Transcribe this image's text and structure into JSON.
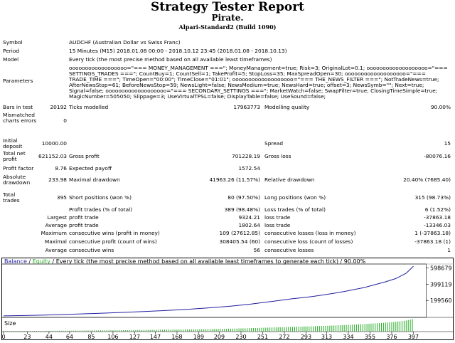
{
  "report": {
    "title": "Strategy Tester Report",
    "ea_name": "Pirate.",
    "server": "Alpari-Standard2 (Build 1090)"
  },
  "symbol": {
    "label": "Symbol",
    "value": "AUDCHF (Australian Dollar vs Swiss Franc)"
  },
  "period": {
    "label": "Period",
    "value": "15 Minutes (M15) 2018.01.08 00:00 - 2018.10.12 23:45 (2018.01.08 - 2018.10.13)"
  },
  "model": {
    "label": "Model",
    "value": "Every tick (the most precise method based on all available least timeframes)"
  },
  "parameters": {
    "label": "Parameters",
    "lines": [
      "oooooooooooooooooo=\"=== MONEY_MANAGEMENT ===\"; MoneyManagement=true; Risk=3; OriginalLot=0.1; ooooooooooooooooooo=\"===",
      "SETTINGS_TRADES ===\"; CountBuy=1; CountSell=1; TakeProfit=5; StopLoss=35; MaxSpreadOpen=30; ooooooooooooooooooo=\"===",
      "TRADE_TIME ===\"; TimeOpen=\"00:00\"; TimeClose=\"01:01\"; ooooooooooooooooooo=\"=== THE_NEWS_FILTER ===\"; NotTradeNews=true;",
      "AfterNewsStop=61; BeforeNewsStop=59; NewsLight=false; NewsMedium=true; NewsHard=true; offset=3; NewsSymb=\"\"; Next=true;",
      "Signal=false; ooooooooooooooooooo=\"=== SECONDARY_SETTINGS ===\"; MarketWatch=false; SwapFilter=true; ClosingTimeSimple=true;",
      "MagicNumber=505050; Slippage=3; UseVirtualTPSL=false; DisplayTable=false; UseSound=false;"
    ]
  },
  "stats": {
    "bars_label": "Bars in test",
    "bars_value": "20192",
    "ticks_label": "Ticks modelled",
    "ticks_value": "17963773",
    "quality_label": "Modelling quality",
    "quality_value": "90.00%",
    "mismatch_label": "Mismatched charts errors",
    "mismatch_value": "0",
    "deposit_label": "Initial deposit",
    "deposit_value": "10000.00",
    "spread_label": "Spread",
    "spread_value": "15",
    "netprofit_label": "Total net profit",
    "netprofit_value": "621152.03",
    "grossprofit_label": "Gross profit",
    "grossprofit_value": "701228.19",
    "grossloss_label": "Gross loss",
    "grossloss_value": "-80076.16",
    "pf_label": "Profit factor",
    "pf_value": "8.76",
    "payoff_label": "Expected payoff",
    "payoff_value": "1572.54",
    "absdd_label": "Absolute drawdown",
    "absdd_value": "233.98",
    "maxdd_label": "Maximal drawdown",
    "maxdd_value": "41963.26 (11.57%)",
    "reldd_label": "Relative drawdown",
    "reldd_value": "20.40% (7685.40)",
    "trades_label": "Total trades",
    "trades_value": "395",
    "short_label": "Short positions (won %)",
    "short_value": "80 (97.50%)",
    "long_label": "Long positions (won %)",
    "long_value": "315 (98.73%)",
    "profit_trades_label": "Profit trades (% of total)",
    "profit_trades_value": "389 (98.48%)",
    "loss_trades_label": "Loss trades (% of total)",
    "loss_trades_value": "6 (1.52%)",
    "largest_label": "Largest",
    "largest_profit_label": "profit trade",
    "largest_profit_value": "9324.21",
    "largest_loss_label": "loss trade",
    "largest_loss_value": "-37863.18",
    "average_label": "Average",
    "average_profit_label": "profit trade",
    "average_profit_value": "1802.64",
    "average_loss_label": "loss trade",
    "average_loss_value": "-13346.03",
    "maximum_label": "Maximum",
    "max_wins_label": "consecutive wins (profit in money)",
    "max_wins_value": "109 (27612.85)",
    "max_losses_label": "consecutive losses (loss in money)",
    "max_losses_value": "1 (-37863.18)",
    "maximal_label": "Maximal",
    "maximal_profit_label": "consecutive profit (count of wins)",
    "maximal_profit_value": "308405.54 (60)",
    "maximal_loss_label": "consecutive loss (count of losses)",
    "maximal_loss_value": "-37863.18 (1)",
    "avg_label": "Average",
    "avg_wins_label": "consecutive wins",
    "avg_wins_value": "56",
    "avg_losses_label": "consecutive losses",
    "avg_losses_value": "1"
  },
  "chart_data": {
    "type": "line",
    "legend": {
      "balance": "Balance",
      "sep": " / ",
      "equity": "Equity",
      "rest": " / Every tick (the most precise method based on all available least timeframes to generate each tick) / 90.00%"
    },
    "colors": {
      "balance": "#1f1fa0",
      "equity": "#22aa22",
      "frame": "#000000",
      "size_bar": "#22aa22"
    },
    "y_ticks": [
      199560,
      399119,
      598679
    ],
    "y_tick_labels": [
      "199560",
      "399119",
      "598679"
    ],
    "ylim": [
      0,
      640000
    ],
    "xlim": [
      0,
      407
    ],
    "x_ticks": [
      0,
      23,
      44,
      64,
      85,
      106,
      127,
      147,
      168,
      189,
      209,
      230,
      251,
      272,
      293,
      313,
      334,
      355,
      376,
      397
    ],
    "x_tick_labels": [
      "0",
      "23",
      "44",
      "64",
      "85",
      "106",
      "127",
      "147",
      "168",
      "189",
      "209",
      "230",
      "251",
      "272",
      "293",
      "313",
      "334",
      "355",
      "376",
      "397"
    ],
    "size_label": "Size",
    "series": [
      {
        "name": "Balance",
        "x": [
          0,
          20,
          40,
          60,
          80,
          100,
          120,
          140,
          160,
          180,
          200,
          220,
          230,
          240,
          250,
          260,
          270,
          280,
          290,
          300,
          310,
          320,
          330,
          340,
          350,
          360,
          370,
          380,
          390,
          397
        ],
        "y": [
          10000,
          14000,
          20000,
          27000,
          36000,
          45000,
          55000,
          66000,
          78000,
          92000,
          110000,
          130000,
          142000,
          156000,
          172000,
          188000,
          205000,
          222000,
          235000,
          250000,
          268000,
          288000,
          310000,
          335000,
          360000,
          395000,
          430000,
          470000,
          535000,
          621152
        ]
      }
    ]
  }
}
